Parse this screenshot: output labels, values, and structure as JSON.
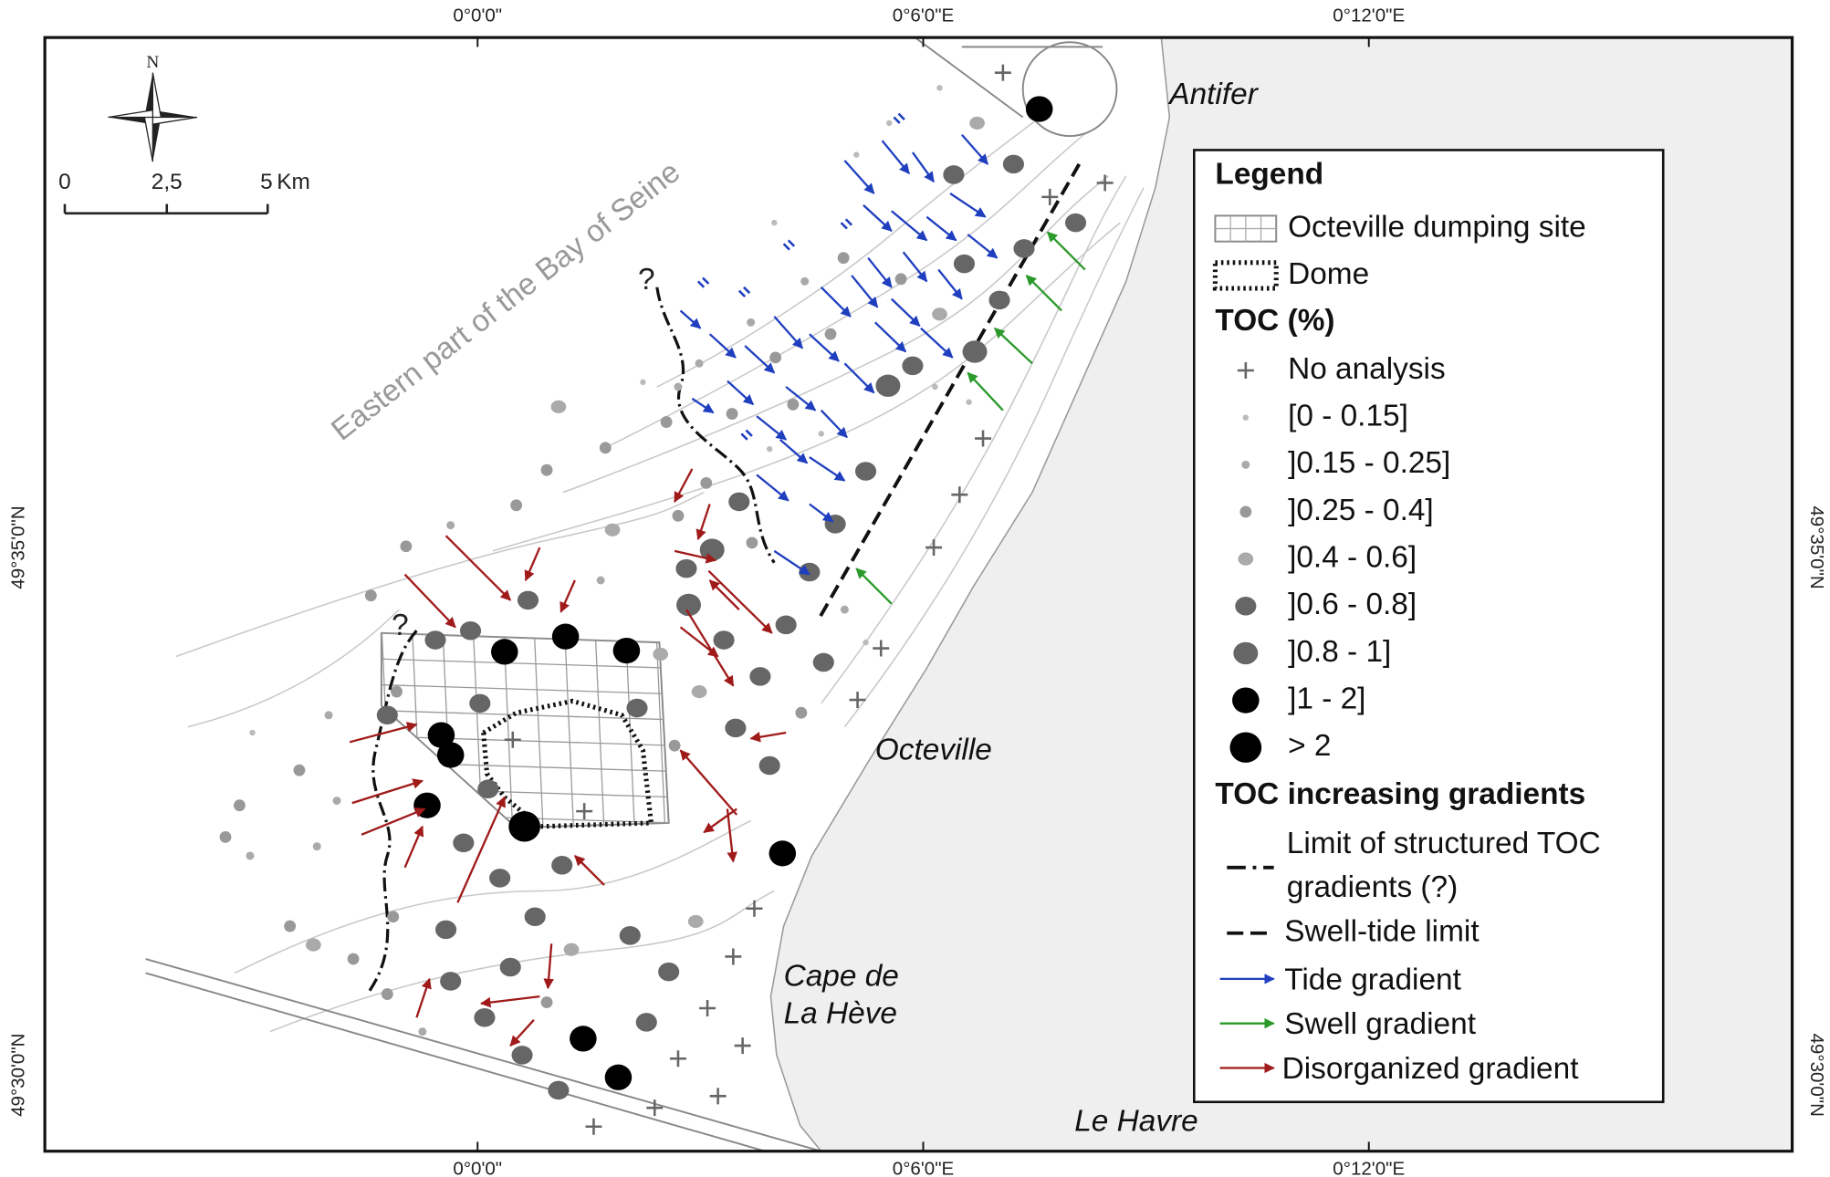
{
  "map": {
    "top_labels": [
      "0°0'0\"",
      "0°6'0\"E",
      "0°12'0\"E"
    ],
    "bottom_labels": [
      "0°0'0\"",
      "0°6'0\"E",
      "0°12'0\"E"
    ],
    "left_labels": [
      "49°35'0\"N",
      "49°30'0\"N"
    ],
    "right_labels": [
      "49°35'0\"N",
      "49°30'0\"N"
    ],
    "north": "N",
    "scale_bar": [
      "0",
      "2,5",
      "5",
      "Km"
    ],
    "region_label": "Eastern part of the Bay of Seine",
    "places": [
      "Antifer",
      "Octeville",
      "Cape de",
      "La Hève",
      "Le Havre"
    ],
    "question_marks": [
      "?",
      "?"
    ]
  },
  "legend": {
    "title": "Legend",
    "dumping_site": "Octeville dumping site",
    "dome": "Dome",
    "toc_title": "TOC (%)",
    "toc_classes": [
      "No analysis",
      "[0 - 0.15]",
      "]0.15 - 0.25]",
      "]0.25 - 0.4]",
      "]0.4 - 0.6]",
      "]0.6 - 0.8]",
      "]0.8 - 1]",
      "]1 - 2]",
      "> 2"
    ],
    "gradients_title": "TOC increasing gradients",
    "limit": [
      "Limit of structured TOC",
      "gradients (?)"
    ],
    "swell_tide_limit": "Swell-tide limit",
    "tide_gradient": "Tide gradient",
    "swell_gradient": "Swell gradient",
    "disorganized_gradient": "Disorganized gradient"
  }
}
